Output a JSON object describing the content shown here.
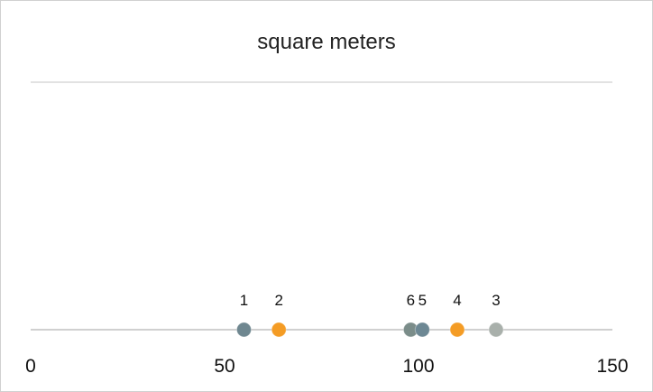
{
  "chart_data": {
    "type": "scatter",
    "title": "square meters",
    "xlabel": "",
    "ylabel": "",
    "xlim": [
      0,
      150
    ],
    "x_ticks": [
      0,
      50,
      100,
      150
    ],
    "tick_labels": [
      "0",
      "50",
      "100",
      "150"
    ],
    "grid": true,
    "legend": "none",
    "points": [
      {
        "label": "1",
        "x": 55,
        "color": "#6f8790"
      },
      {
        "label": "2",
        "x": 64,
        "color": "#f49c25"
      },
      {
        "label": "6",
        "x": 98,
        "color": "#7b8d8a"
      },
      {
        "label": "5",
        "x": 101,
        "color": "#6d8894"
      },
      {
        "label": "4",
        "x": 110,
        "color": "#f49c25"
      },
      {
        "label": "3",
        "x": 120,
        "color": "#a9b0ab"
      }
    ]
  }
}
